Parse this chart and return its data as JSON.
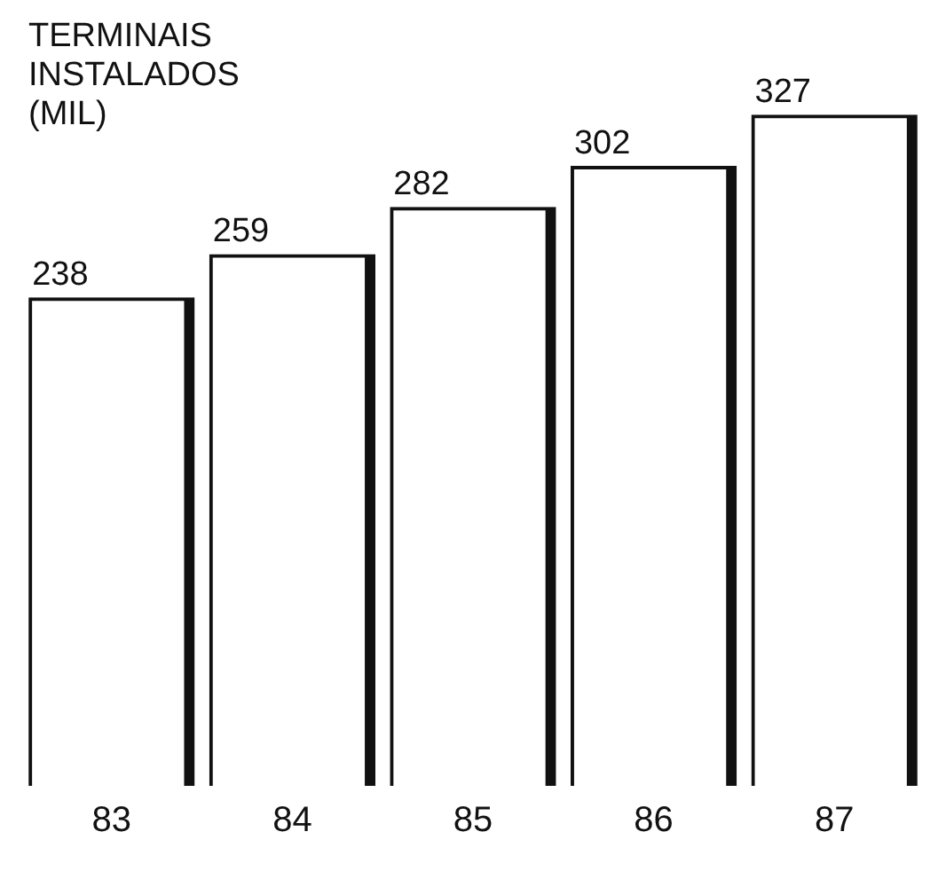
{
  "chart_data": {
    "type": "bar",
    "title": "TERMINAIS INSTALADOS (MIL)",
    "categories": [
      "83",
      "84",
      "85",
      "86",
      "87"
    ],
    "values": [
      238,
      259,
      282,
      302,
      327
    ],
    "color": "#111111",
    "data_labels": true
  }
}
